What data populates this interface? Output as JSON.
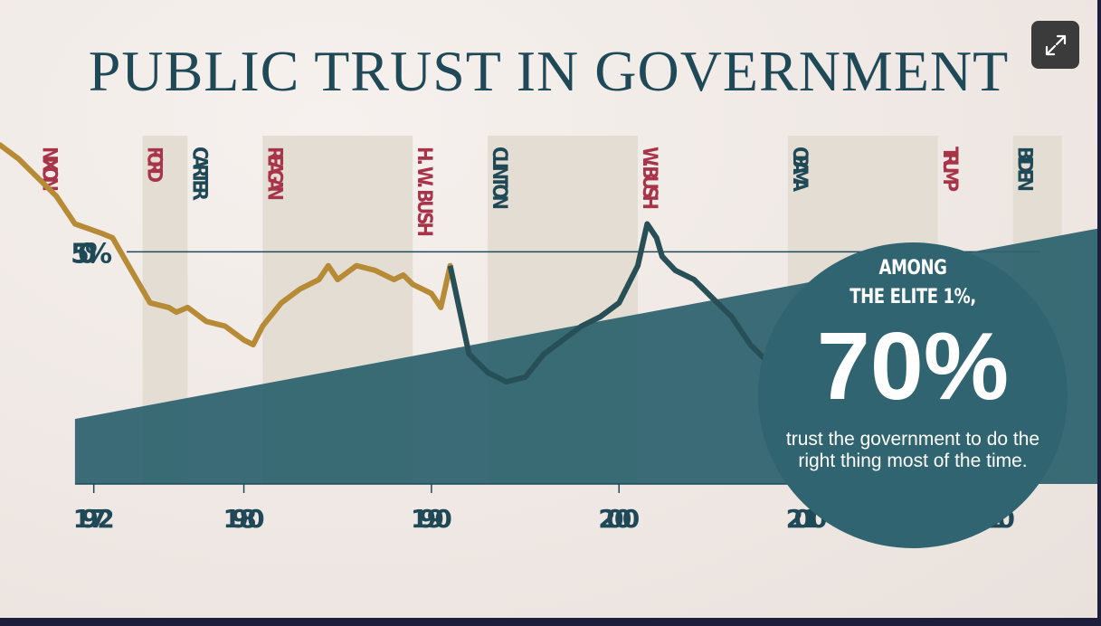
{
  "title": "PUBLIC TRUST IN GOVERNMENT",
  "colors": {
    "navy": "#1f4957",
    "red": "#a8344a",
    "gold": "#b78a36",
    "teal": "#2f6470",
    "band": "#e3ddd3"
  },
  "controls": {
    "expand_icon": "expand-arrows-icon"
  },
  "callout": {
    "line1": "AMONG",
    "line2": "THE ELITE 1%,",
    "big": "70%",
    "sub": "trust the government to do the right thing most of the time."
  },
  "chart_data": {
    "type": "line",
    "title": "PUBLIC TRUST IN GOVERNMENT",
    "xlabel": "",
    "ylabel": "",
    "xlim": [
      1967,
      2025.5
    ],
    "ylim": [
      0,
      75
    ],
    "x_ticks": [
      1972,
      1980,
      1990,
      2000,
      2010,
      2020
    ],
    "y_reference": {
      "value": 50,
      "label": "50%"
    },
    "presidents": [
      {
        "name": "NIXON",
        "start": 1969.0,
        "end": 1974.6,
        "shaded": false,
        "color": "red"
      },
      {
        "name": "FORD",
        "start": 1974.6,
        "end": 1977.0,
        "shaded": true,
        "color": "red"
      },
      {
        "name": "CARTER",
        "start": 1977.0,
        "end": 1981.0,
        "shaded": false,
        "color": "navy"
      },
      {
        "name": "REAGAN",
        "start": 1981.0,
        "end": 1989.0,
        "shaded": true,
        "color": "red"
      },
      {
        "name": "H. W. BUSH",
        "start": 1989.0,
        "end": 1993.0,
        "shaded": false,
        "color": "red"
      },
      {
        "name": "CLINTON",
        "start": 1993.0,
        "end": 2001.0,
        "shaded": true,
        "color": "navy"
      },
      {
        "name": "W. BUSH",
        "start": 2001.0,
        "end": 2009.0,
        "shaded": false,
        "color": "red"
      },
      {
        "name": "OBAMA",
        "start": 2009.0,
        "end": 2017.0,
        "shaded": true,
        "color": "navy"
      },
      {
        "name": "TRUMP",
        "start": 2017.0,
        "end": 2021.0,
        "shaded": false,
        "color": "red"
      },
      {
        "name": "BIDEN",
        "start": 2021.0,
        "end": 2023.6,
        "shaded": true,
        "color": "navy"
      }
    ],
    "series": [
      {
        "x": [
          1967,
          1968,
          1970,
          1971,
          1972.4,
          1973,
          1974,
          1975,
          1976,
          1976.4,
          1977,
          1978,
          1979,
          1980,
          1980.5,
          1981,
          1982,
          1983,
          1984,
          1984.5,
          1985,
          1986,
          1987,
          1988,
          1988.5,
          1989,
          1990,
          1990.5,
          1991,
          1992,
          1993,
          1994,
          1995,
          1996,
          1997,
          1998,
          1999,
          2000,
          2001,
          2001.5,
          2002,
          2002.3,
          2003,
          2004,
          2005,
          2006,
          2007,
          2008,
          2009,
          2010,
          2011,
          2012,
          2013,
          2014,
          2015,
          2016,
          2017,
          2018,
          2019,
          2020,
          2020.8,
          2021,
          2022,
          2023
        ],
        "y": [
          73,
          70,
          62,
          56,
          54,
          53,
          46,
          39,
          38,
          37,
          38,
          35,
          34,
          31,
          30,
          34,
          39,
          42,
          44,
          47,
          44,
          47,
          46,
          44,
          45,
          43,
          41,
          38,
          47,
          28,
          24,
          22,
          23,
          28,
          31,
          34,
          36,
          39,
          47,
          56,
          53,
          49,
          46,
          44,
          40,
          36,
          30,
          26,
          25,
          23,
          22,
          21,
          21,
          22,
          21,
          20,
          19,
          19,
          20,
          22,
          25,
          22,
          20,
          18
        ]
      }
    ],
    "wedge": {
      "x_start": 1971,
      "x_end": 2025.5,
      "y_start_top": 14,
      "y_end_top": 55
    }
  }
}
